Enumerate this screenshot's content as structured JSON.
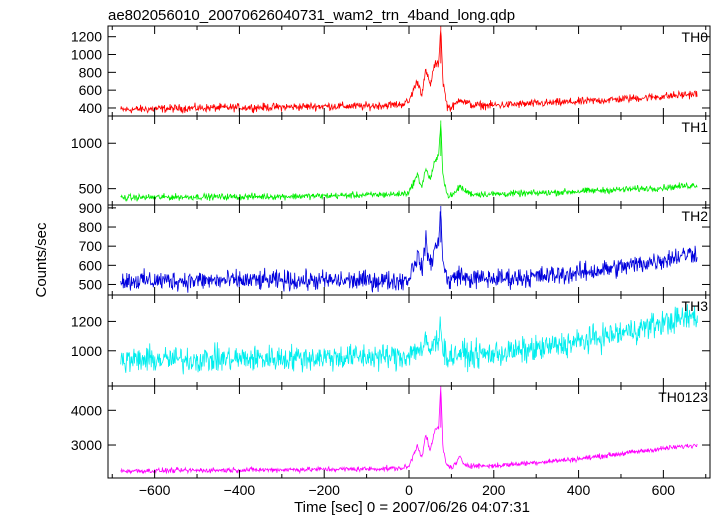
{
  "chart_data": {
    "type": "line",
    "title": "ae802056010_20070626040731_wam2_trn_4band_long.qdp",
    "xlabel": "Time [sec] 0 = 2007/06/26 04:07:31",
    "ylabel": "Counts/sec",
    "xlim": [
      -710,
      710
    ],
    "x_ticks": [
      -600,
      -400,
      -200,
      0,
      200,
      400,
      600
    ],
    "panels": [
      {
        "name": "TH0",
        "color": "#ff0000",
        "ylim": [
          310,
          1320
        ],
        "y_ticks": [
          400,
          600,
          800,
          1000,
          1200
        ],
        "noise": 28,
        "x": [
          -680,
          -600,
          -500,
          -400,
          -300,
          -200,
          -100,
          -20,
          0,
          10,
          20,
          30,
          40,
          50,
          60,
          70,
          75,
          80,
          90,
          100,
          110,
          120,
          130,
          150,
          200,
          300,
          400,
          500,
          600,
          680
        ],
        "y": [
          380,
          390,
          400,
          405,
          410,
          420,
          420,
          440,
          470,
          600,
          700,
          560,
          820,
          650,
          880,
          900,
          1320,
          700,
          420,
          400,
          440,
          510,
          470,
          430,
          430,
          450,
          470,
          500,
          530,
          560
        ]
      },
      {
        "name": "TH1",
        "color": "#00ee00",
        "ylim": [
          320,
          1300
        ],
        "y_ticks": [
          500,
          1000
        ],
        "noise": 22,
        "x": [
          -680,
          -600,
          -500,
          -400,
          -300,
          -200,
          -100,
          -20,
          0,
          10,
          20,
          30,
          40,
          50,
          60,
          70,
          75,
          80,
          90,
          100,
          110,
          120,
          130,
          150,
          200,
          300,
          400,
          500,
          600,
          680
        ],
        "y": [
          400,
          405,
          410,
          410,
          415,
          420,
          430,
          440,
          460,
          560,
          650,
          520,
          720,
          600,
          780,
          860,
          1250,
          650,
          430,
          420,
          460,
          530,
          480,
          440,
          440,
          450,
          470,
          490,
          510,
          540
        ]
      },
      {
        "name": "TH2",
        "color": "#0000dd",
        "ylim": [
          445,
          915
        ],
        "y_ticks": [
          500,
          600,
          700,
          800,
          900
        ],
        "noise": 32,
        "x": [
          -680,
          -600,
          -500,
          -400,
          -300,
          -200,
          -100,
          -20,
          0,
          10,
          20,
          30,
          40,
          50,
          60,
          70,
          75,
          80,
          90,
          100,
          110,
          120,
          130,
          150,
          200,
          300,
          400,
          500,
          600,
          680
        ],
        "y": [
          520,
          520,
          520,
          520,
          520,
          520,
          520,
          520,
          530,
          600,
          650,
          580,
          720,
          600,
          680,
          720,
          910,
          620,
          520,
          520,
          540,
          560,
          530,
          530,
          530,
          540,
          560,
          590,
          630,
          670
        ]
      },
      {
        "name": "TH3",
        "color": "#00eeee",
        "ylim": [
          760,
          1380
        ],
        "y_ticks": [
          1000,
          1200
        ],
        "noise": 55,
        "x": [
          -680,
          -600,
          -500,
          -400,
          -300,
          -200,
          -100,
          -20,
          0,
          10,
          20,
          30,
          40,
          50,
          60,
          70,
          75,
          80,
          90,
          100,
          110,
          120,
          130,
          150,
          200,
          300,
          400,
          500,
          600,
          680
        ],
        "y": [
          930,
          940,
          940,
          945,
          950,
          955,
          960,
          960,
          970,
          1000,
          1020,
          990,
          1060,
          1000,
          1050,
          1080,
          1230,
          1000,
          960,
          960,
          970,
          990,
          970,
          970,
          980,
          1010,
          1060,
          1120,
          1190,
          1240
        ]
      },
      {
        "name": "TH0123",
        "color": "#ff00ff",
        "ylim": [
          2050,
          4700
        ],
        "y_ticks": [
          3000,
          4000
        ],
        "noise": 45,
        "x": [
          -680,
          -600,
          -500,
          -400,
          -300,
          -200,
          -100,
          -20,
          0,
          10,
          20,
          30,
          40,
          50,
          60,
          70,
          75,
          80,
          90,
          100,
          110,
          120,
          130,
          150,
          200,
          300,
          400,
          500,
          600,
          680
        ],
        "y": [
          2250,
          2260,
          2270,
          2280,
          2290,
          2300,
          2310,
          2330,
          2380,
          2700,
          3000,
          2650,
          3300,
          2800,
          3400,
          3500,
          4700,
          2900,
          2400,
          2350,
          2450,
          2650,
          2450,
          2400,
          2400,
          2500,
          2600,
          2750,
          2900,
          3000
        ]
      }
    ]
  }
}
